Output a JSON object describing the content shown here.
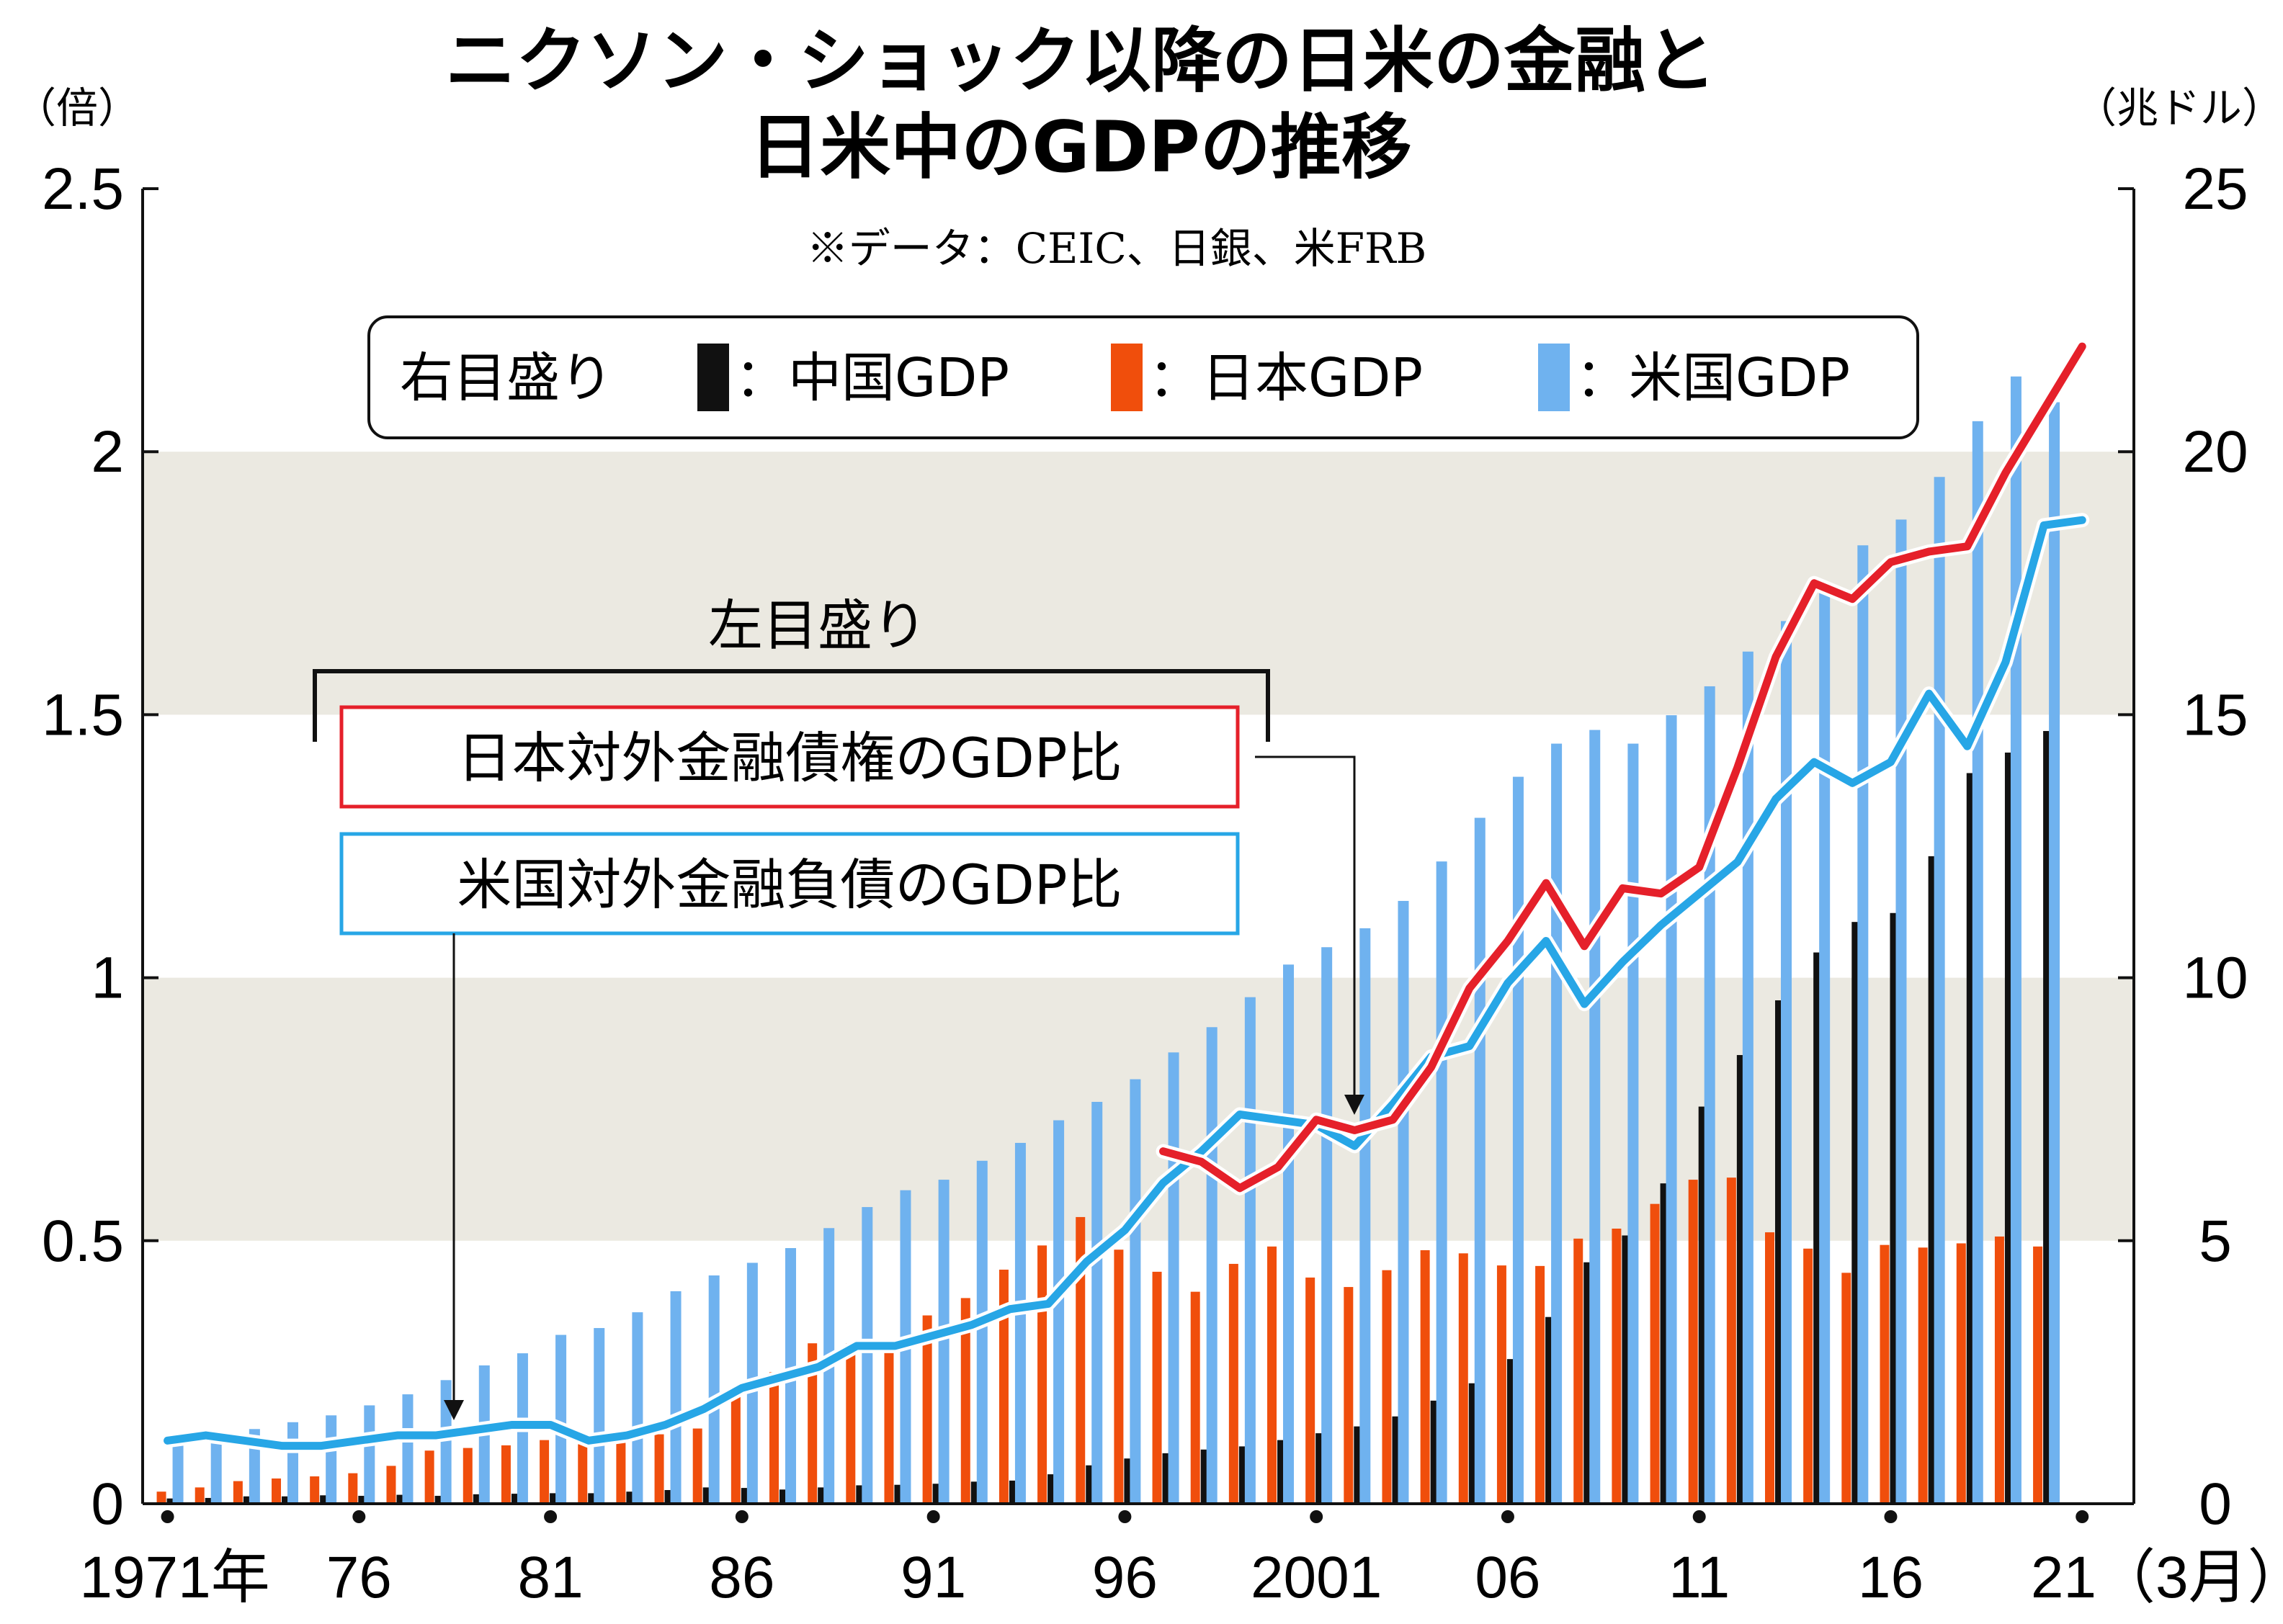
{
  "chart_data": {
    "type": "bar",
    "title_line1": "ニクソン・ショック以降の日米の金融と",
    "title_line2": "日米中のGDPの推移",
    "source": "※データ：CEIC、日銀、米FRB",
    "left_unit": "（倍）",
    "right_unit": "（兆ドル）",
    "left_ticks": [
      "0",
      "0.5",
      "1",
      "1.5",
      "2",
      "2.5"
    ],
    "right_ticks": [
      "0",
      "5",
      "10",
      "15",
      "20",
      "25"
    ],
    "left_ylim": [
      0,
      2.5
    ],
    "right_ylim": [
      0,
      25
    ],
    "x_labels": [
      "1971年",
      "76",
      "81",
      "86",
      "91",
      "96",
      "2001",
      "06",
      "11",
      "16",
      "21（3月）"
    ],
    "years": [
      1971,
      1972,
      1973,
      1974,
      1975,
      1976,
      1977,
      1978,
      1979,
      1980,
      1981,
      1982,
      1983,
      1984,
      1985,
      1986,
      1987,
      1988,
      1989,
      1990,
      1991,
      1992,
      1993,
      1994,
      1995,
      1996,
      1997,
      1998,
      1999,
      2000,
      2001,
      2002,
      2003,
      2004,
      2005,
      2006,
      2007,
      2008,
      2009,
      2010,
      2011,
      2012,
      2013,
      2014,
      2015,
      2016,
      2017,
      2018,
      2019,
      2020,
      2021
    ],
    "legend": {
      "prefix": "右目盛り",
      "items": [
        {
          "label": "：中国GDP",
          "color": "#111111"
        },
        {
          "label": "：日本GDP",
          "color": "#f04e0c"
        },
        {
          "label": "：米国GDP",
          "color": "#6fb2ef"
        }
      ]
    },
    "bar_series": [
      {
        "name": "中国GDP",
        "color": "#111111",
        "values": [
          0.1,
          0.11,
          0.14,
          0.14,
          0.16,
          0.15,
          0.17,
          0.15,
          0.18,
          0.19,
          0.2,
          0.2,
          0.23,
          0.26,
          0.31,
          0.3,
          0.27,
          0.31,
          0.35,
          0.36,
          0.38,
          0.42,
          0.44,
          0.56,
          0.73,
          0.86,
          0.96,
          1.03,
          1.09,
          1.21,
          1.34,
          1.47,
          1.66,
          1.96,
          2.29,
          2.75,
          3.55,
          4.59,
          5.1,
          6.09,
          7.55,
          8.53,
          9.57,
          10.48,
          11.06,
          11.23,
          12.31,
          13.89,
          14.28,
          14.69,
          null
        ]
      },
      {
        "name": "日本GDP",
        "color": "#f04e0c",
        "values": [
          0.23,
          0.31,
          0.43,
          0.48,
          0.52,
          0.58,
          0.72,
          1.01,
          1.06,
          1.11,
          1.21,
          1.13,
          1.24,
          1.32,
          1.43,
          2.08,
          2.5,
          3.05,
          3.05,
          3.13,
          3.58,
          3.91,
          4.45,
          4.91,
          5.45,
          4.83,
          4.41,
          4.03,
          4.56,
          4.89,
          4.3,
          4.12,
          4.44,
          4.82,
          4.76,
          4.53,
          4.52,
          5.04,
          5.23,
          5.7,
          6.16,
          6.2,
          5.16,
          4.85,
          4.39,
          4.92,
          4.87,
          4.95,
          5.08,
          4.89,
          null
        ]
      },
      {
        "name": "米国GDP",
        "color": "#6fb2ef",
        "values": [
          1.16,
          1.28,
          1.42,
          1.55,
          1.68,
          1.87,
          2.08,
          2.35,
          2.63,
          2.86,
          3.21,
          3.34,
          3.64,
          4.04,
          4.34,
          4.58,
          4.86,
          5.24,
          5.64,
          5.96,
          6.16,
          6.52,
          6.86,
          7.29,
          7.64,
          8.07,
          8.58,
          9.06,
          9.63,
          10.25,
          10.58,
          10.94,
          11.46,
          12.21,
          13.04,
          13.82,
          14.45,
          14.71,
          14.45,
          14.99,
          15.54,
          16.2,
          16.78,
          17.52,
          18.22,
          18.71,
          19.52,
          20.58,
          21.43,
          20.94,
          null
        ]
      }
    ],
    "line_label_bracket": "左目盛り",
    "lines": [
      {
        "name": "日本対外金融債権のGDP比",
        "color": "#e5202a",
        "points": [
          [
            1997,
            0.67
          ],
          [
            1998,
            0.65
          ],
          [
            1999,
            0.6
          ],
          [
            2000,
            0.64
          ],
          [
            2001,
            0.73
          ],
          [
            2002,
            0.71
          ],
          [
            2003,
            0.73
          ],
          [
            2004,
            0.83
          ],
          [
            2005,
            0.98
          ],
          [
            2006,
            1.07
          ],
          [
            2007,
            1.18
          ],
          [
            2008,
            1.06
          ],
          [
            2009,
            1.17
          ],
          [
            2010,
            1.16
          ],
          [
            2011,
            1.21
          ],
          [
            2012,
            1.4
          ],
          [
            2013,
            1.61
          ],
          [
            2014,
            1.75
          ],
          [
            2015,
            1.72
          ],
          [
            2016,
            1.79
          ],
          [
            2017,
            1.81
          ],
          [
            2018,
            1.82
          ],
          [
            2019,
            1.96
          ],
          [
            2020,
            2.08
          ],
          [
            2021,
            2.2
          ]
        ]
      },
      {
        "name": "米国対外金融負債のGDP比",
        "color": "#27a6e6",
        "points": [
          [
            1971,
            0.12
          ],
          [
            1972,
            0.13
          ],
          [
            1973,
            0.12
          ],
          [
            1974,
            0.11
          ],
          [
            1975,
            0.11
          ],
          [
            1976,
            0.12
          ],
          [
            1977,
            0.13
          ],
          [
            1978,
            0.13
          ],
          [
            1979,
            0.14
          ],
          [
            1980,
            0.15
          ],
          [
            1981,
            0.15
          ],
          [
            1982,
            0.12
          ],
          [
            1983,
            0.13
          ],
          [
            1984,
            0.15
          ],
          [
            1985,
            0.18
          ],
          [
            1986,
            0.22
          ],
          [
            1987,
            0.24
          ],
          [
            1988,
            0.26
          ],
          [
            1989,
            0.3
          ],
          [
            1990,
            0.3
          ],
          [
            1991,
            0.32
          ],
          [
            1992,
            0.34
          ],
          [
            1993,
            0.37
          ],
          [
            1994,
            0.38
          ],
          [
            1995,
            0.46
          ],
          [
            1996,
            0.52
          ],
          [
            1997,
            0.61
          ],
          [
            1998,
            0.67
          ],
          [
            1999,
            0.74
          ],
          [
            2000,
            0.73
          ],
          [
            2001,
            0.72
          ],
          [
            2002,
            0.68
          ],
          [
            2003,
            0.76
          ],
          [
            2004,
            0.85
          ],
          [
            2005,
            0.87
          ],
          [
            2006,
            0.99
          ],
          [
            2007,
            1.07
          ],
          [
            2008,
            0.95
          ],
          [
            2009,
            1.03
          ],
          [
            2010,
            1.1
          ],
          [
            2011,
            1.16
          ],
          [
            2012,
            1.22
          ],
          [
            2013,
            1.34
          ],
          [
            2014,
            1.41
          ],
          [
            2015,
            1.37
          ],
          [
            2016,
            1.41
          ],
          [
            2017,
            1.54
          ],
          [
            2018,
            1.44
          ],
          [
            2019,
            1.6
          ],
          [
            2020,
            1.86
          ],
          [
            2021,
            1.87
          ]
        ]
      }
    ],
    "bands": [
      [
        0.5,
        1.0
      ],
      [
        1.5,
        2.0
      ]
    ],
    "band_color": "#ebe9e1"
  }
}
